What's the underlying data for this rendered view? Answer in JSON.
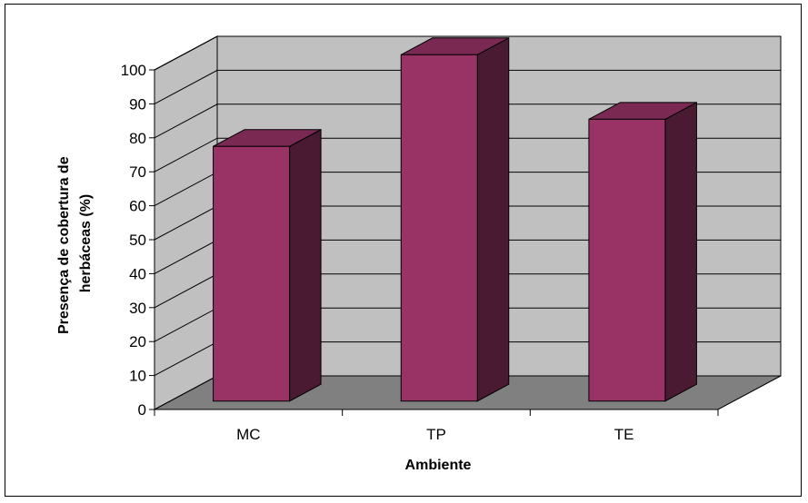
{
  "chart_data": {
    "type": "bar",
    "categories": [
      "MC",
      "TP",
      "TE"
    ],
    "values": [
      75,
      102,
      83
    ],
    "xlabel": "Ambiente",
    "ylabel_lines": [
      "Presença de cobertura de",
      "herbáceas (%)"
    ],
    "ylim": [
      0,
      100
    ],
    "yticks": [
      0,
      10,
      20,
      30,
      40,
      50,
      60,
      70,
      80,
      90,
      100
    ],
    "grid": true,
    "legend": "none",
    "three_d": true,
    "colors": {
      "bar_front": "#993366",
      "bar_top": "#7a2a52",
      "bar_side": "#4a1a33",
      "back_wall": "#c0c0c0",
      "floor": "#808080"
    }
  }
}
